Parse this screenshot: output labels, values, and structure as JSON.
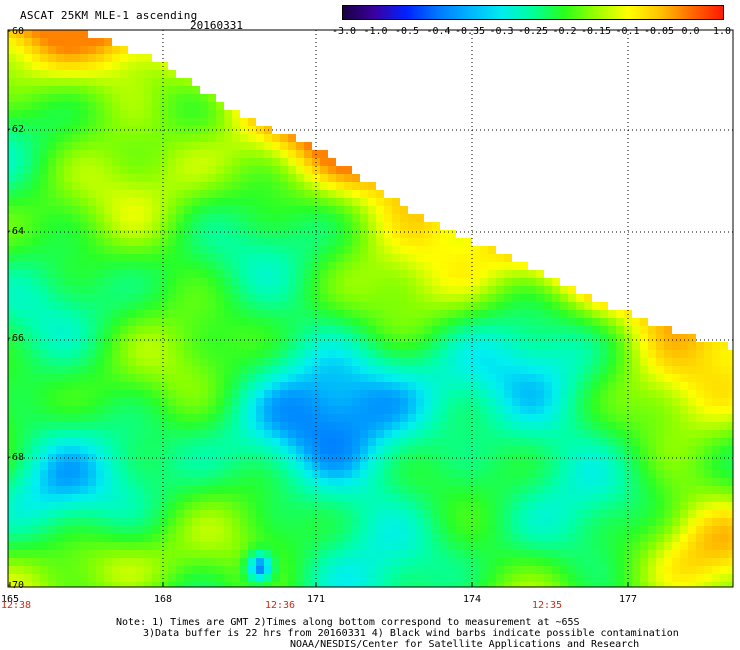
{
  "header": {
    "title": "ASCAT 25KM MLE-1 ascending",
    "date": "20160331"
  },
  "colorbar": {
    "labels": [
      "-3.0",
      "-1.0",
      "-0.5",
      "-0.4",
      "-0.35",
      "-0.3",
      "-0.25",
      "-0.2",
      "-0.15",
      "-0.1",
      "-0.05",
      "0.0",
      "1.0"
    ],
    "colors": [
      "#1a0040",
      "#3a00a0",
      "#0022ff",
      "#0078ff",
      "#00b4ff",
      "#00ecf0",
      "#00ff9a",
      "#2aff1a",
      "#9cff00",
      "#ffff00",
      "#ffc400",
      "#ff6a00",
      "#ff1a00"
    ]
  },
  "map": {
    "lat_labels": [
      "-60",
      "-62",
      "-64",
      "-66",
      "-68",
      "-70"
    ],
    "lon_labels": [
      "165",
      "168",
      "171",
      "174",
      "177"
    ],
    "time_labels": [
      "12:38",
      "12:36",
      "12:35"
    ],
    "lat_range": [
      -70,
      -60
    ],
    "lon_range": [
      165,
      178.5
    ]
  },
  "notes": {
    "line1": "Note: 1) Times are GMT 2)Times along bottom correspond to measurement at ~65S",
    "line2": "3)Data buffer is 22 hrs from 20160331 4) Black wind barbs indicate possible contamination",
    "line3": "NOAA/NESDIS/Center for Satellite Applications and Research"
  }
}
